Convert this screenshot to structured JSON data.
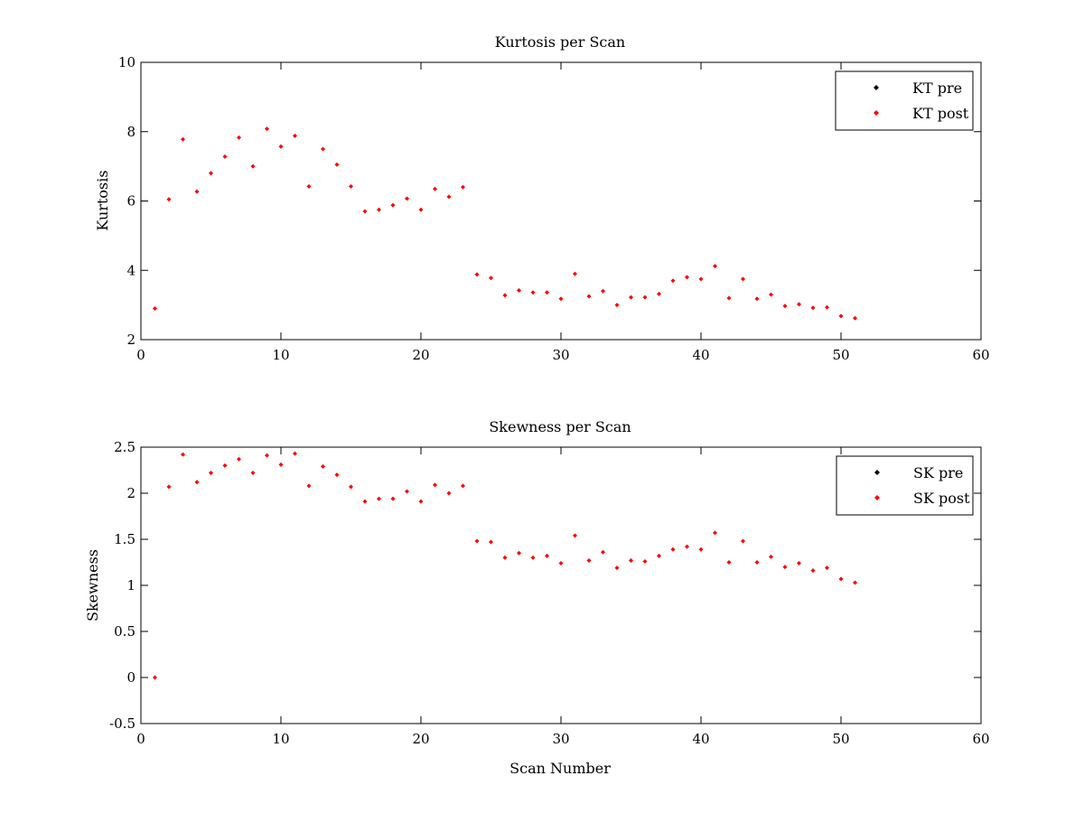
{
  "chart_data": [
    {
      "type": "scatter",
      "title": "Kurtosis per Scan",
      "xlabel": "",
      "ylabel": "Kurtosis",
      "xlim": [
        0,
        60
      ],
      "ylim": [
        2,
        10
      ],
      "xticks": [
        "0",
        "10",
        "20",
        "30",
        "40",
        "50",
        "60"
      ],
      "yticks": [
        "2",
        "4",
        "6",
        "8",
        "10"
      ],
      "legend_position": "top-right",
      "series": [
        {
          "name": "KT pre",
          "color": "#000000",
          "x": [],
          "y": []
        },
        {
          "name": "KT post",
          "color": "#ff0000",
          "x": [
            1,
            2,
            3,
            4,
            5,
            6,
            7,
            8,
            9,
            10,
            11,
            12,
            13,
            14,
            15,
            16,
            17,
            18,
            19,
            20,
            21,
            22,
            23,
            24,
            25,
            26,
            27,
            28,
            29,
            30,
            31,
            32,
            33,
            34,
            35,
            36,
            37,
            38,
            39,
            40,
            41,
            42,
            43,
            44,
            45,
            46,
            47,
            48,
            49,
            50,
            51
          ],
          "y": [
            2.9,
            6.05,
            7.78,
            6.27,
            6.8,
            7.28,
            7.83,
            7.0,
            8.08,
            7.57,
            7.88,
            6.42,
            7.5,
            7.05,
            6.42,
            5.7,
            5.75,
            5.88,
            6.07,
            5.75,
            6.35,
            6.12,
            6.4,
            3.88,
            3.78,
            3.28,
            3.42,
            3.36,
            3.36,
            3.18,
            3.9,
            3.25,
            3.4,
            3.0,
            3.22,
            3.22,
            3.32,
            3.7,
            3.8,
            3.75,
            4.12,
            3.2,
            3.75,
            3.18,
            3.3,
            2.97,
            3.02,
            2.92,
            2.93,
            2.68,
            2.62
          ]
        }
      ]
    },
    {
      "type": "scatter",
      "title": "Skewness per Scan",
      "xlabel": "Scan Number",
      "ylabel": "Skewness",
      "xlim": [
        0,
        60
      ],
      "ylim": [
        -0.5,
        2.5
      ],
      "xticks": [
        "0",
        "10",
        "20",
        "30",
        "40",
        "50",
        "60"
      ],
      "yticks": [
        "-0.5",
        "0",
        "0.5",
        "1",
        "1.5",
        "2",
        "2.5"
      ],
      "legend_position": "top-right",
      "series": [
        {
          "name": "SK pre",
          "color": "#000000",
          "x": [],
          "y": []
        },
        {
          "name": "SK post",
          "color": "#ff0000",
          "x": [
            1,
            2,
            3,
            4,
            5,
            6,
            7,
            8,
            9,
            10,
            11,
            12,
            13,
            14,
            15,
            16,
            17,
            18,
            19,
            20,
            21,
            22,
            23,
            24,
            25,
            26,
            27,
            28,
            29,
            30,
            31,
            32,
            33,
            34,
            35,
            36,
            37,
            38,
            39,
            40,
            41,
            42,
            43,
            44,
            45,
            46,
            47,
            48,
            49,
            50,
            51
          ],
          "y": [
            0.0,
            2.07,
            2.42,
            2.12,
            2.22,
            2.3,
            2.37,
            2.22,
            2.41,
            2.31,
            2.43,
            2.08,
            2.29,
            2.2,
            2.07,
            1.91,
            1.94,
            1.94,
            2.02,
            1.91,
            2.09,
            2.0,
            2.08,
            1.48,
            1.47,
            1.3,
            1.35,
            1.3,
            1.32,
            1.24,
            1.54,
            1.27,
            1.36,
            1.19,
            1.27,
            1.26,
            1.32,
            1.39,
            1.42,
            1.39,
            1.57,
            1.25,
            1.48,
            1.25,
            1.31,
            1.2,
            1.24,
            1.16,
            1.19,
            1.07,
            1.03
          ]
        }
      ]
    }
  ]
}
